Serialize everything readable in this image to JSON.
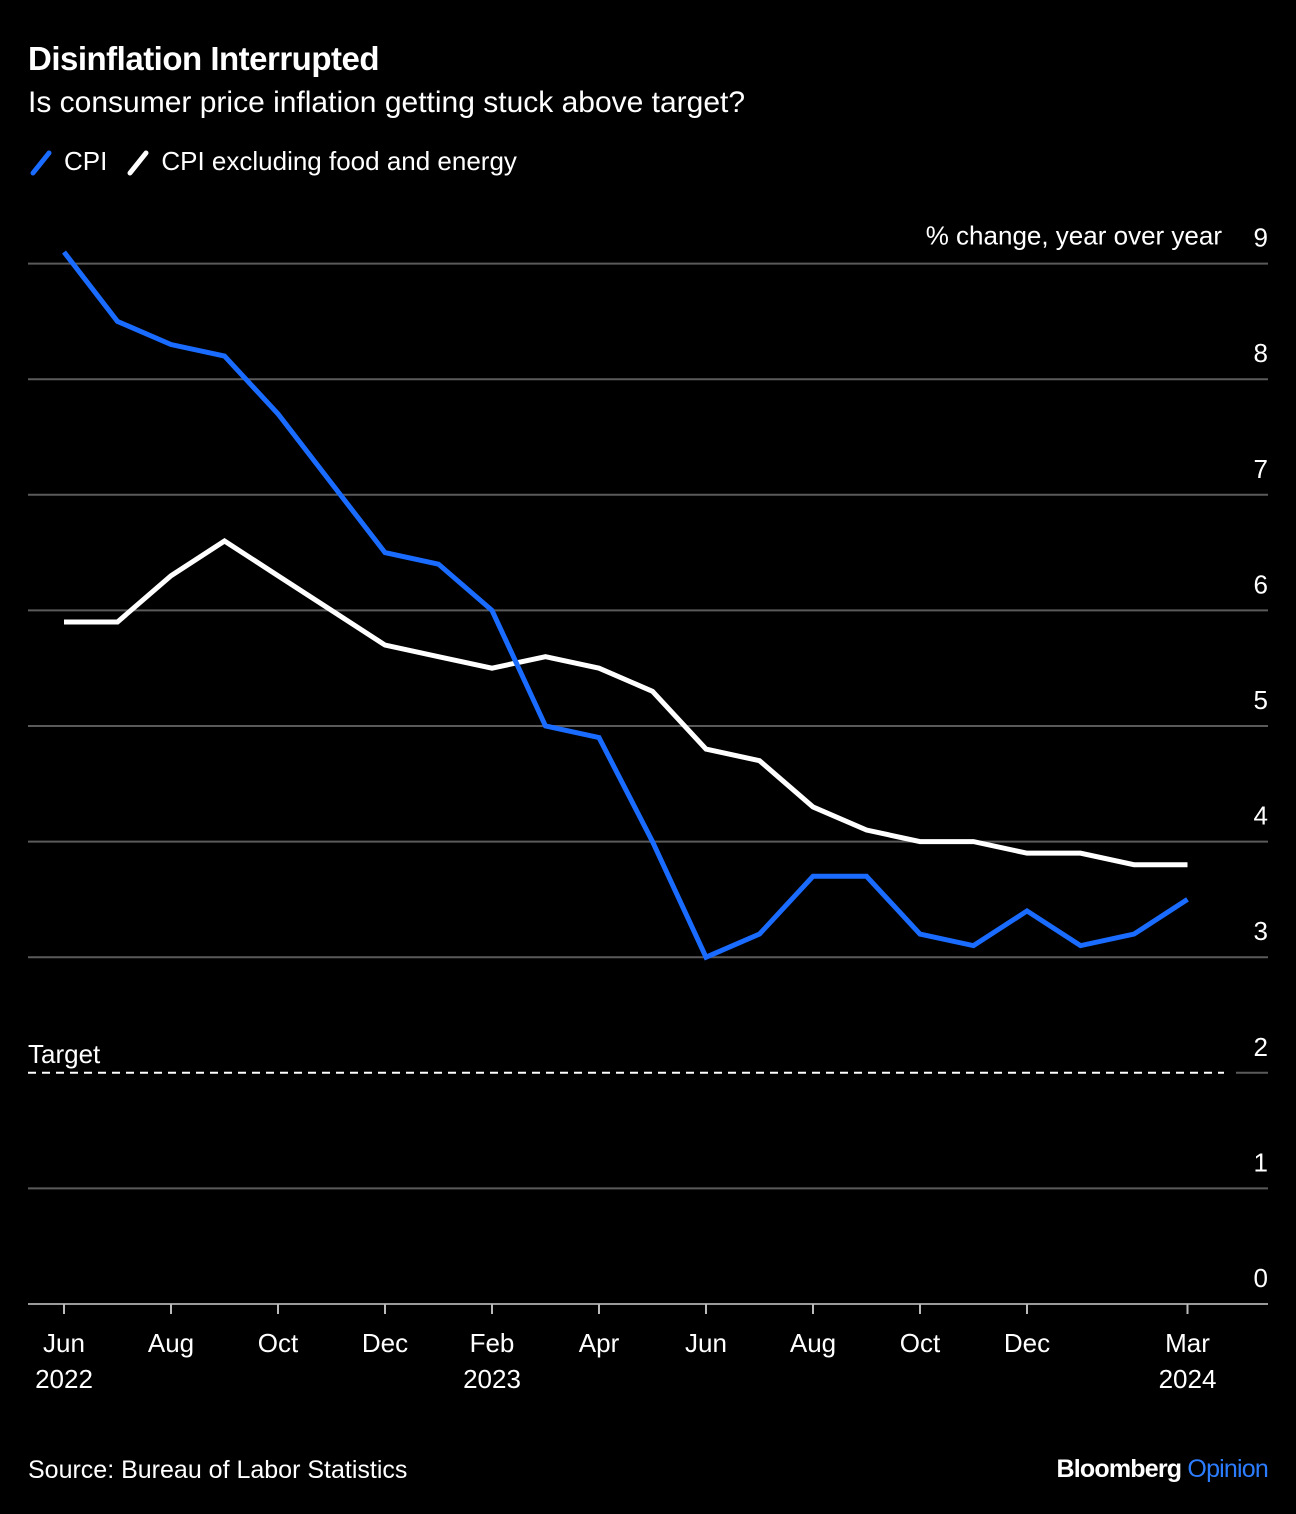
{
  "header": {
    "title": "Disinflation Interrupted",
    "subtitle": "Is consumer price inflation getting stuck above target?"
  },
  "footer": {
    "source": "Source: Bureau of Labor Statistics",
    "brand_primary": "Bloomberg",
    "brand_secondary": "Opinion"
  },
  "colors": {
    "background": "#000000",
    "cpi": "#1a6bff",
    "core": "#ffffff",
    "grid": "#5a5a5a",
    "brand_accent": "#2b7cff"
  },
  "chart_data": {
    "type": "line",
    "title": "Disinflation Interrupted",
    "subtitle": "Is consumer price inflation getting stuck above target?",
    "ylabel": "% change, year over year",
    "ylim": [
      0,
      9
    ],
    "y_ticks": [
      "0",
      "1",
      "2",
      "3",
      "4",
      "5",
      "6",
      "7",
      "8",
      "9"
    ],
    "x": [
      "2022-06",
      "2022-07",
      "2022-08",
      "2022-09",
      "2022-10",
      "2022-11",
      "2022-12",
      "2023-01",
      "2023-02",
      "2023-03",
      "2023-04",
      "2023-05",
      "2023-06",
      "2023-07",
      "2023-08",
      "2023-09",
      "2023-10",
      "2023-11",
      "2023-12",
      "2024-01",
      "2024-02",
      "2024-03"
    ],
    "x_tick_labels": [
      {
        "month": "Jun",
        "year": "2022",
        "index": 0
      },
      {
        "month": "Aug",
        "year": "",
        "index": 2
      },
      {
        "month": "Oct",
        "year": "",
        "index": 4
      },
      {
        "month": "Dec",
        "year": "",
        "index": 6
      },
      {
        "month": "Feb",
        "year": "2023",
        "index": 8
      },
      {
        "month": "Apr",
        "year": "",
        "index": 10
      },
      {
        "month": "Jun",
        "year": "",
        "index": 12
      },
      {
        "month": "Aug",
        "year": "",
        "index": 14
      },
      {
        "month": "Oct",
        "year": "",
        "index": 16
      },
      {
        "month": "Dec",
        "year": "",
        "index": 18
      },
      {
        "month": "Mar",
        "year": "2024",
        "index": 21
      }
    ],
    "series": [
      {
        "name": "CPI",
        "color": "#1a6bff",
        "values": [
          9.1,
          8.5,
          8.3,
          8.2,
          7.7,
          7.1,
          6.5,
          6.4,
          6.0,
          5.0,
          4.9,
          4.0,
          3.0,
          3.2,
          3.7,
          3.7,
          3.2,
          3.1,
          3.4,
          3.1,
          3.2,
          3.5
        ]
      },
      {
        "name": "CPI excluding food and energy",
        "color": "#ffffff",
        "values": [
          5.9,
          5.9,
          6.3,
          6.6,
          6.3,
          6.0,
          5.7,
          5.6,
          5.5,
          5.6,
          5.5,
          5.3,
          4.8,
          4.7,
          4.3,
          4.1,
          4.0,
          4.0,
          3.9,
          3.9,
          3.8,
          3.8
        ]
      }
    ],
    "reference_line": {
      "label": "Target",
      "value": 2,
      "style": "dashed"
    },
    "grid": true,
    "legend_position": "top-left"
  }
}
